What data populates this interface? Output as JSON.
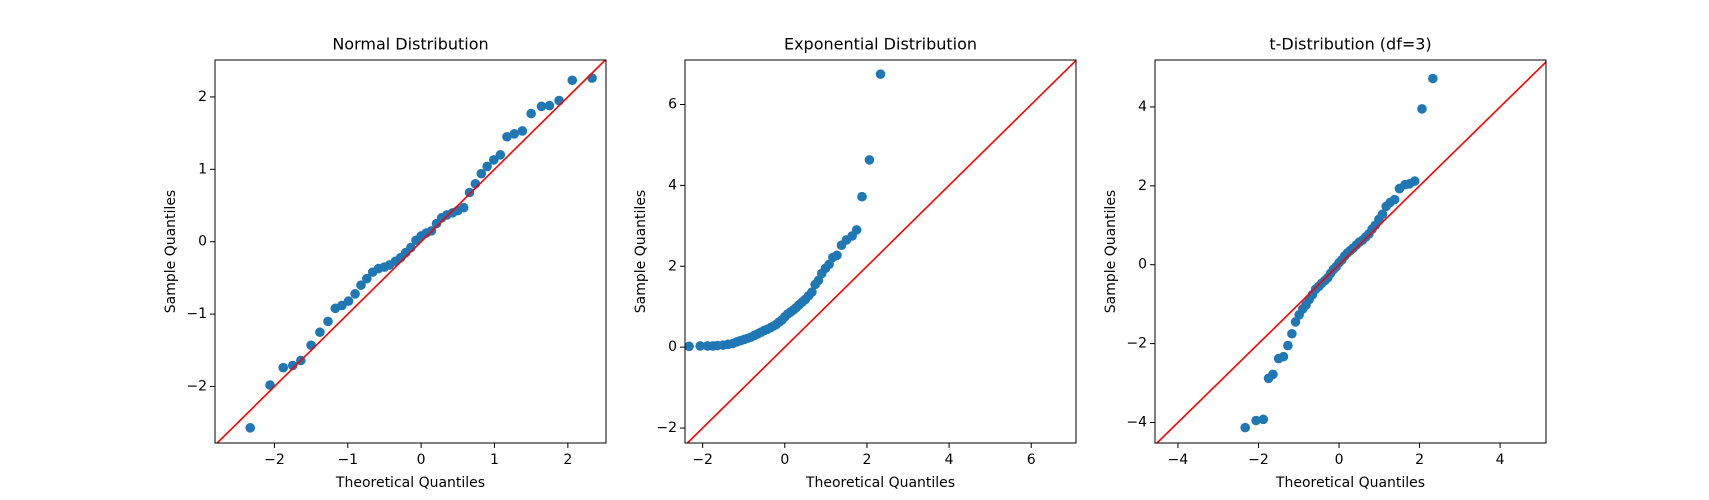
{
  "chart_data": [
    {
      "type": "scatter",
      "title": "Normal Distribution",
      "xlabel": "Theoretical Quantiles",
      "ylabel": "Sample Quantiles",
      "color": "#1f77b4",
      "reference_line": "45",
      "line_color": "#ff0000",
      "xlim": [
        -2.81,
        2.52
      ],
      "ylim": [
        -2.78,
        2.51
      ],
      "xticks": [
        {
          "value": -2,
          "label": "−2"
        },
        {
          "value": -1,
          "label": "−1"
        },
        0,
        1,
        2
      ],
      "yticks": [
        {
          "value": -2,
          "label": "−2"
        },
        {
          "value": -1,
          "label": "−1"
        },
        0,
        1,
        2
      ],
      "x": [
        -2.33,
        -2.06,
        -1.88,
        -1.75,
        -1.64,
        -1.5,
        -1.38,
        -1.27,
        -1.17,
        -1.08,
        -0.99,
        -0.9,
        -0.82,
        -0.74,
        -0.66,
        -0.58,
        -0.5,
        -0.43,
        -0.35,
        -0.28,
        -0.21,
        -0.14,
        -0.07,
        0,
        0.07,
        0.14,
        0.21,
        0.28,
        0.35,
        0.43,
        0.5,
        0.58,
        0.66,
        0.74,
        0.82,
        0.9,
        0.99,
        1.08,
        1.17,
        1.27,
        1.38,
        1.5,
        1.64,
        1.75,
        1.88,
        2.06,
        2.33
      ],
      "values": [
        -2.57,
        -1.98,
        -1.74,
        -1.71,
        -1.64,
        -1.43,
        -1.25,
        -1.1,
        -0.92,
        -0.88,
        -0.82,
        -0.72,
        -0.6,
        -0.51,
        -0.42,
        -0.37,
        -0.35,
        -0.32,
        -0.27,
        -0.22,
        -0.15,
        -0.08,
        0.02,
        0.08,
        0.12,
        0.15,
        0.25,
        0.33,
        0.37,
        0.4,
        0.43,
        0.47,
        0.68,
        0.8,
        0.94,
        1.04,
        1.13,
        1.2,
        1.45,
        1.49,
        1.53,
        1.77,
        1.87,
        1.88,
        1.95,
        2.23,
        2.26
      ]
    },
    {
      "type": "scatter",
      "title": "Exponential Distribution",
      "xlabel": "Theoretical Quantiles",
      "ylabel": "Sample Quantiles",
      "color": "#1f77b4",
      "reference_line": "45",
      "line_color": "#ff0000",
      "xlim": [
        -2.43,
        7.09
      ],
      "ylim": [
        -2.37,
        7.1
      ],
      "xticks": [
        {
          "value": -2,
          "label": "−2"
        },
        0,
        2,
        4,
        6
      ],
      "yticks": [
        {
          "value": -2,
          "label": "−2"
        },
        0,
        2,
        4,
        6
      ],
      "x": [
        -2.33,
        -2.06,
        -1.88,
        -1.75,
        -1.64,
        -1.5,
        -1.38,
        -1.27,
        -1.17,
        -1.08,
        -0.99,
        -0.9,
        -0.82,
        -0.74,
        -0.66,
        -0.58,
        -0.5,
        -0.43,
        -0.35,
        -0.28,
        -0.21,
        -0.14,
        -0.07,
        0,
        0.07,
        0.14,
        0.21,
        0.28,
        0.35,
        0.43,
        0.5,
        0.58,
        0.66,
        0.74,
        0.82,
        0.9,
        0.99,
        1.08,
        1.17,
        1.27,
        1.38,
        1.5,
        1.64,
        1.75,
        1.88,
        2.06,
        2.33
      ],
      "values": [
        0.02,
        0.03,
        0.03,
        0.03,
        0.04,
        0.05,
        0.07,
        0.09,
        0.13,
        0.16,
        0.19,
        0.22,
        0.25,
        0.29,
        0.33,
        0.37,
        0.41,
        0.44,
        0.48,
        0.52,
        0.56,
        0.62,
        0.67,
        0.75,
        0.82,
        0.87,
        0.92,
        0.98,
        1.05,
        1.12,
        1.18,
        1.27,
        1.36,
        1.55,
        1.65,
        1.82,
        1.95,
        2.05,
        2.22,
        2.27,
        2.52,
        2.65,
        2.75,
        2.9,
        3.72,
        4.63,
        6.75
      ]
    },
    {
      "type": "scatter",
      "title": "t-Distribution (df=3)",
      "xlabel": "Theoretical Quantiles",
      "ylabel": "Sample Quantiles",
      "color": "#1f77b4",
      "reference_line": "45",
      "line_color": "#ff0000",
      "xlim": [
        -4.57,
        5.14
      ],
      "ylim": [
        -4.52,
        5.19
      ],
      "xticks": [
        {
          "value": -4,
          "label": "−4"
        },
        {
          "value": -2,
          "label": "−2"
        },
        0,
        2,
        4
      ],
      "yticks": [
        {
          "value": -4,
          "label": "−4"
        },
        {
          "value": -2,
          "label": "−2"
        },
        0,
        2,
        4
      ],
      "x": [
        -2.33,
        -2.06,
        -1.88,
        -1.75,
        -1.64,
        -1.5,
        -1.38,
        -1.27,
        -1.17,
        -1.08,
        -0.99,
        -0.9,
        -0.82,
        -0.74,
        -0.66,
        -0.58,
        -0.5,
        -0.43,
        -0.35,
        -0.28,
        -0.21,
        -0.14,
        -0.07,
        0,
        0.07,
        0.14,
        0.21,
        0.28,
        0.35,
        0.43,
        0.5,
        0.58,
        0.66,
        0.74,
        0.82,
        0.9,
        0.99,
        1.08,
        1.17,
        1.27,
        1.38,
        1.5,
        1.64,
        1.75,
        1.88,
        2.06,
        2.33
      ],
      "values": [
        -4.13,
        -3.95,
        -3.92,
        -2.88,
        -2.78,
        -2.38,
        -2.33,
        -2.05,
        -1.75,
        -1.45,
        -1.27,
        -1.12,
        -1.02,
        -0.88,
        -0.76,
        -0.62,
        -0.55,
        -0.47,
        -0.4,
        -0.33,
        -0.22,
        -0.12,
        -0.05,
        0.05,
        0.12,
        0.22,
        0.3,
        0.36,
        0.42,
        0.5,
        0.57,
        0.62,
        0.7,
        0.78,
        0.9,
        1.0,
        1.15,
        1.28,
        1.48,
        1.58,
        1.65,
        1.93,
        2.03,
        2.05,
        2.12,
        3.95,
        4.72
      ]
    }
  ]
}
